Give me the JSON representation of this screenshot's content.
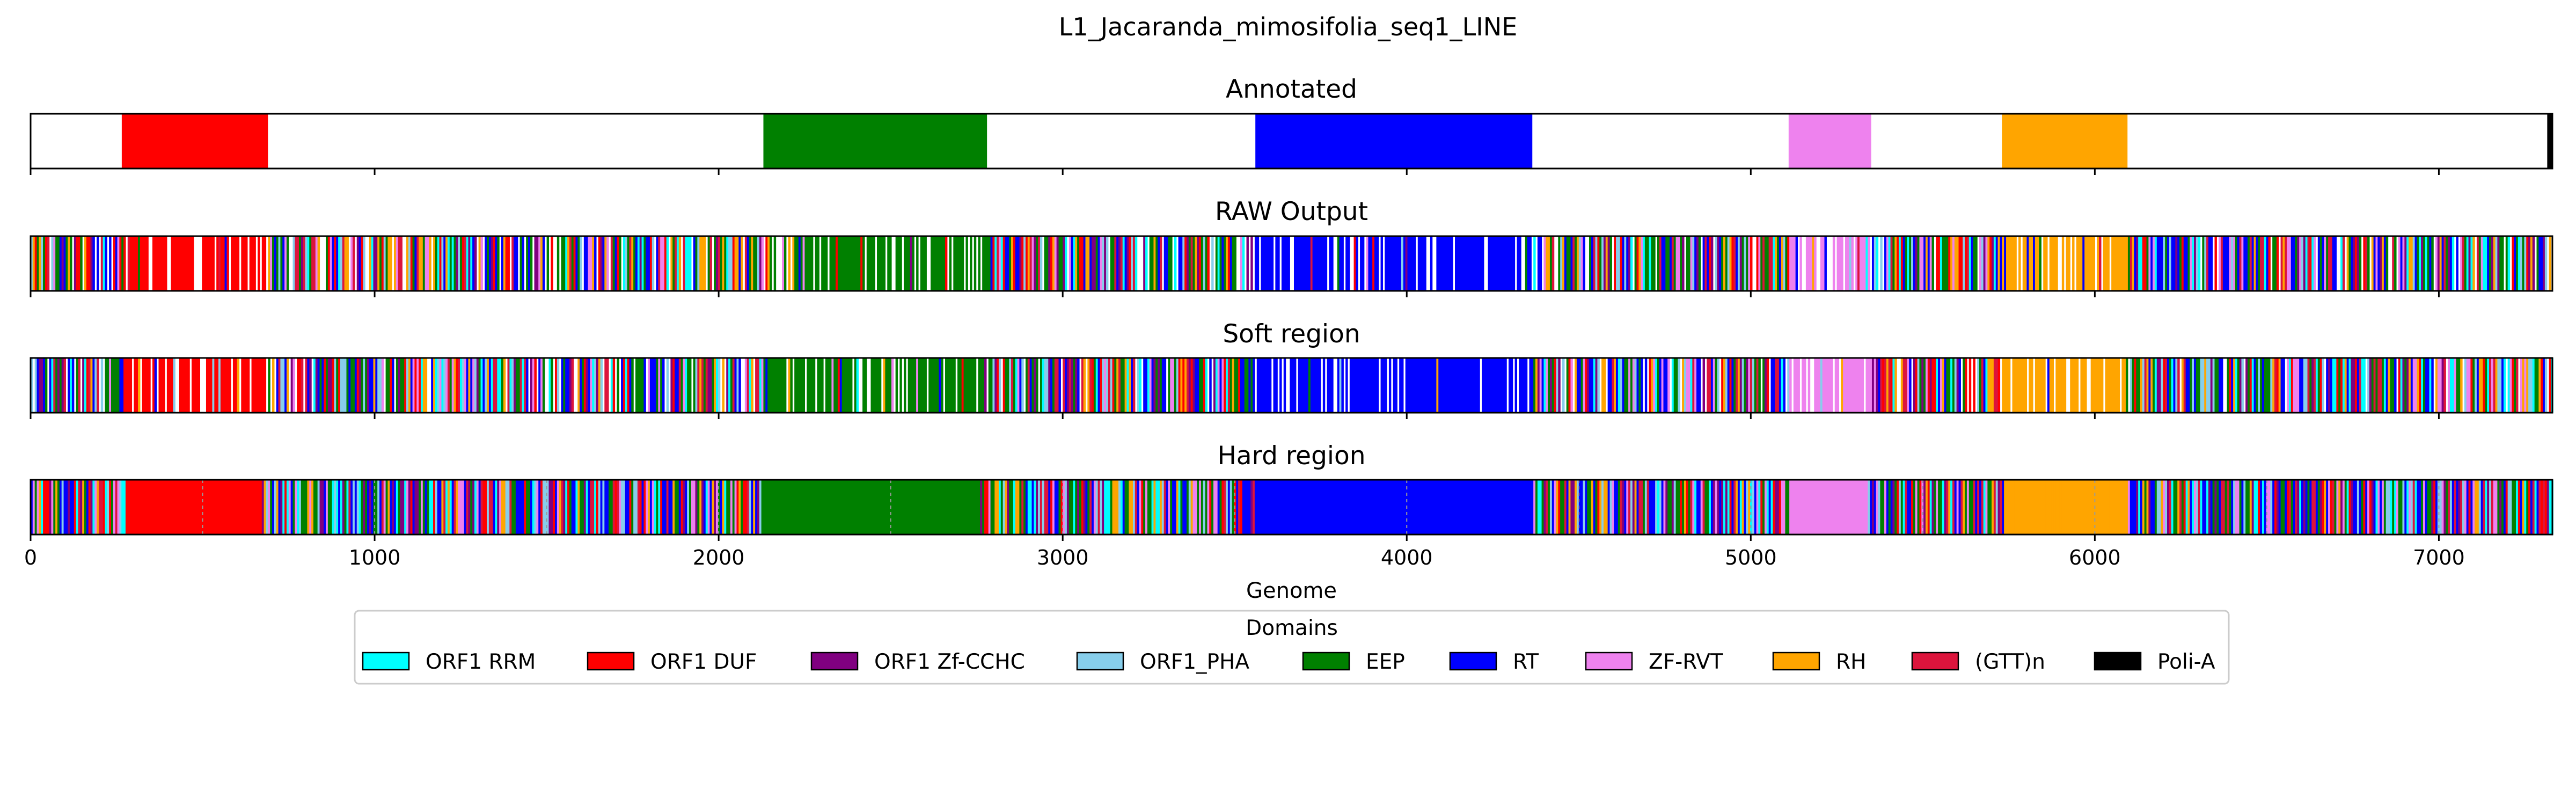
{
  "chart_data": {
    "type": "genome-track",
    "title": "L1_Jacaranda_mimosifolia_seq1_LINE",
    "xlabel": "Genome",
    "xlim": [
      0,
      7330
    ],
    "xticks": [
      0,
      1000,
      2000,
      3000,
      4000,
      5000,
      6000,
      7000
    ],
    "panels": [
      {
        "title": "Annotated",
        "mode": "annotated",
        "segments": [
          {
            "domain": "ORF1 DUF",
            "start": 265,
            "end": 690
          },
          {
            "domain": "EEP",
            "start": 2130,
            "end": 2780
          },
          {
            "domain": "RT",
            "start": 3560,
            "end": 4365
          },
          {
            "domain": "ZF-RVT",
            "start": 5110,
            "end": 5350
          },
          {
            "domain": "RH",
            "start": 5730,
            "end": 6095
          },
          {
            "domain": "Poli-A",
            "start": 7315,
            "end": 7330
          }
        ]
      },
      {
        "title": "RAW Output",
        "mode": "raw",
        "segments": [
          {
            "domain": "ORF1 DUF",
            "start": 265,
            "end": 690
          },
          {
            "domain": "EEP",
            "start": 2130,
            "end": 2780
          },
          {
            "domain": "RT",
            "start": 3560,
            "end": 4365
          },
          {
            "domain": "ZF-RVT",
            "start": 5110,
            "end": 5350
          },
          {
            "domain": "RH",
            "start": 5730,
            "end": 6095
          }
        ]
      },
      {
        "title": "Soft region",
        "mode": "raw",
        "segments": [
          {
            "domain": "ORF1 DUF",
            "start": 265,
            "end": 690
          },
          {
            "domain": "EEP",
            "start": 2130,
            "end": 2780
          },
          {
            "domain": "RT",
            "start": 3560,
            "end": 4365
          },
          {
            "domain": "ZF-RVT",
            "start": 5110,
            "end": 5350
          },
          {
            "domain": "RH",
            "start": 5730,
            "end": 6095
          }
        ]
      },
      {
        "title": "Hard region",
        "mode": "hard",
        "segments": [
          {
            "domain": "ORF1 DUF",
            "start": 275,
            "end": 670
          },
          {
            "domain": "EEP",
            "start": 2120,
            "end": 2760
          },
          {
            "domain": "RT",
            "start": 3555,
            "end": 4360
          },
          {
            "domain": "ZF-RVT",
            "start": 5110,
            "end": 5335
          },
          {
            "domain": "RH",
            "start": 5735,
            "end": 6095
          }
        ]
      }
    ],
    "legend": {
      "title": "Domains",
      "placement": "bottom-center",
      "entries": [
        {
          "name": "ORF1 RRM",
          "color": "#00ffff"
        },
        {
          "name": "ORF1 DUF",
          "color": "#ff0000"
        },
        {
          "name": "ORF1 Zf-CCHC",
          "color": "#800080"
        },
        {
          "name": "ORF1_PHA",
          "color": "#87ceeb"
        },
        {
          "name": "EEP",
          "color": "#008000"
        },
        {
          "name": "RT",
          "color": "#0000ff"
        },
        {
          "name": "ZF-RVT",
          "color": "#ee82ee"
        },
        {
          "name": "RH",
          "color": "#ffa500"
        },
        {
          "name": "(GTT)n",
          "color": "#dc143c"
        },
        {
          "name": "Poli-A",
          "color": "#000000"
        }
      ]
    }
  }
}
